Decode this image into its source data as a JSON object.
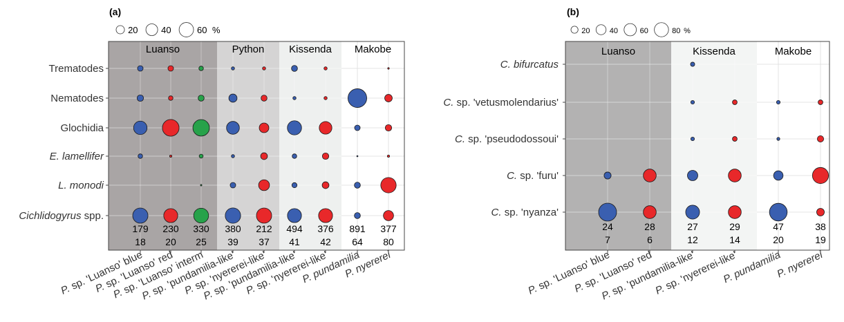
{
  "chart_data": [
    {
      "panel": "(a)",
      "type": "scatter",
      "subtype": "bubble",
      "size_unit": "%",
      "legend": {
        "values": [
          20,
          40,
          60
        ],
        "unit": "%",
        "placement": "top-left"
      },
      "sites": [
        {
          "name": "Luanso",
          "columns": [
            0,
            1,
            2
          ],
          "shade": "#a9a5a5"
        },
        {
          "name": "Python",
          "columns": [
            3,
            4
          ],
          "shade": "#d5d4d4"
        },
        {
          "name": "Kissenda",
          "columns": [
            5,
            6
          ],
          "shade": "#eef0ef"
        },
        {
          "name": "Makobe",
          "columns": [
            7,
            8
          ],
          "shade": "#ffffff"
        }
      ],
      "columns": [
        {
          "prefix": "P. sp. ",
          "label": "P. sp. 'Luanso' blue",
          "rest": "'Luanso' blue"
        },
        {
          "prefix": "P. sp. ",
          "label": "P. sp. 'Luanso' red",
          "rest": "'Luanso' red"
        },
        {
          "prefix": "P. sp. ",
          "label": "P. sp. 'Luanso' interm",
          "rest": "'Luanso' interm"
        },
        {
          "prefix": "P. sp. ",
          "label": "P. sp. 'pundamilia-like'",
          "rest": "'pundamilia-like'"
        },
        {
          "prefix": "P. sp. ",
          "label": "P. sp. 'nyererei-like'",
          "rest": "'nyererei-like'"
        },
        {
          "prefix": "P. sp. ",
          "label": "P. sp. 'pundamilia-like'",
          "rest": "'pundamilia-like'"
        },
        {
          "prefix": "P. sp. ",
          "label": "P. sp. 'nyererei-like'",
          "rest": "'nyererei-like'"
        },
        {
          "prefix": "",
          "label": "P. pundamilia",
          "rest": "P. pundamilia",
          "italic_all": true
        },
        {
          "prefix": "",
          "label": "P. nyererei",
          "rest": "P. nyererei",
          "italic_all": true
        }
      ],
      "column_colors": [
        "#3a5fb0",
        "#e8282a",
        "#27a24a",
        "#3a5fb0",
        "#e8282a",
        "#3a5fb0",
        "#e8282a",
        "#3a5fb0",
        "#e8282a"
      ],
      "rows": [
        {
          "label": "Trematodes",
          "italic": false,
          "values": [
            6,
            6,
            4,
            2,
            2,
            7,
            2,
            0,
            0.5
          ]
        },
        {
          "label": "Nematodes",
          "italic": false,
          "values": [
            8,
            4,
            7,
            13,
            7,
            2,
            2,
            68,
            11
          ]
        },
        {
          "label": "Glochidia",
          "italic": false,
          "values": [
            35,
            54,
            53,
            32,
            18,
            39,
            31,
            6,
            8
          ]
        },
        {
          "label": "E. lamellifer",
          "italic": true,
          "values": [
            4,
            1,
            3,
            2,
            9,
            4,
            8,
            0.3,
            1
          ]
        },
        {
          "label": "L. monodi",
          "italic": false,
          "italic_full": true,
          "values": [
            0,
            0,
            0.4,
            6,
            23,
            5,
            9,
            7,
            46
          ]
        },
        {
          "label_italic": "Cichlidogyrus",
          "label_plain": " spp.",
          "values": [
            45,
            38,
            43,
            46,
            45,
            38,
            38,
            7,
            20
          ]
        }
      ],
      "counts": [
        [
          179,
          230,
          330,
          380,
          212,
          494,
          376,
          891,
          377
        ],
        [
          18,
          20,
          25,
          39,
          37,
          41,
          42,
          64,
          80
        ]
      ]
    },
    {
      "panel": "(b)",
      "type": "scatter",
      "subtype": "bubble",
      "size_unit": "%",
      "legend": {
        "values": [
          20,
          40,
          60,
          80
        ],
        "unit": "%",
        "placement": "top-left"
      },
      "sites": [
        {
          "name": "Luanso",
          "columns": [
            0,
            1
          ],
          "shade": "#b3b2b2"
        },
        {
          "name": "Kissenda",
          "columns": [
            2,
            3
          ],
          "shade": "#f3f5f4"
        },
        {
          "name": "Makobe",
          "columns": [
            4,
            5
          ],
          "shade": "#ffffff"
        }
      ],
      "columns": [
        {
          "prefix": "P. sp. ",
          "label": "P. sp. 'Luanso' blue",
          "rest": "'Luanso' blue"
        },
        {
          "prefix": "P. sp. ",
          "label": "P. sp. 'Luanso' red",
          "rest": "'Luanso' red"
        },
        {
          "prefix": "P. sp. ",
          "label": "P. sp. 'pundamilia-like'",
          "rest": "'pundamilia-like'"
        },
        {
          "prefix": "P. sp. ",
          "label": "P. sp. 'nyererei-like'",
          "rest": "'nyererei-like'"
        },
        {
          "prefix": "",
          "label": "P. pundamilia",
          "rest": "P. pundamilia",
          "italic_all": true
        },
        {
          "prefix": "",
          "label": "P. nyererei",
          "rest": "P. nyererei",
          "italic_all": true
        }
      ],
      "column_colors": [
        "#3a5fb0",
        "#e8282a",
        "#3a5fb0",
        "#e8282a",
        "#3a5fb0",
        "#e8282a"
      ],
      "rows": [
        {
          "label_italic": "C. bifurcatus",
          "label_plain": "",
          "values": [
            0,
            0,
            4,
            0,
            0,
            0
          ]
        },
        {
          "label_italic": "C.",
          "label_plain": " sp. 'vetusmolendarius'",
          "values": [
            0,
            0,
            3,
            5,
            3,
            5
          ]
        },
        {
          "label_italic": "C.",
          "label_plain": " sp. 'pseudodossoui'",
          "values": [
            0,
            0,
            3,
            5,
            2,
            9
          ]
        },
        {
          "label_italic": "C.",
          "label_plain": " sp. 'furu'",
          "values": [
            11,
            37,
            24,
            37,
            20,
            58
          ]
        },
        {
          "label_italic": "C.",
          "label_plain": " sp. 'nyanza'",
          "values": [
            72,
            37,
            43,
            37,
            70,
            13
          ]
        }
      ],
      "counts": [
        [
          24,
          28,
          27,
          29,
          47,
          38
        ],
        [
          7,
          6,
          12,
          14,
          20,
          19
        ]
      ]
    }
  ]
}
